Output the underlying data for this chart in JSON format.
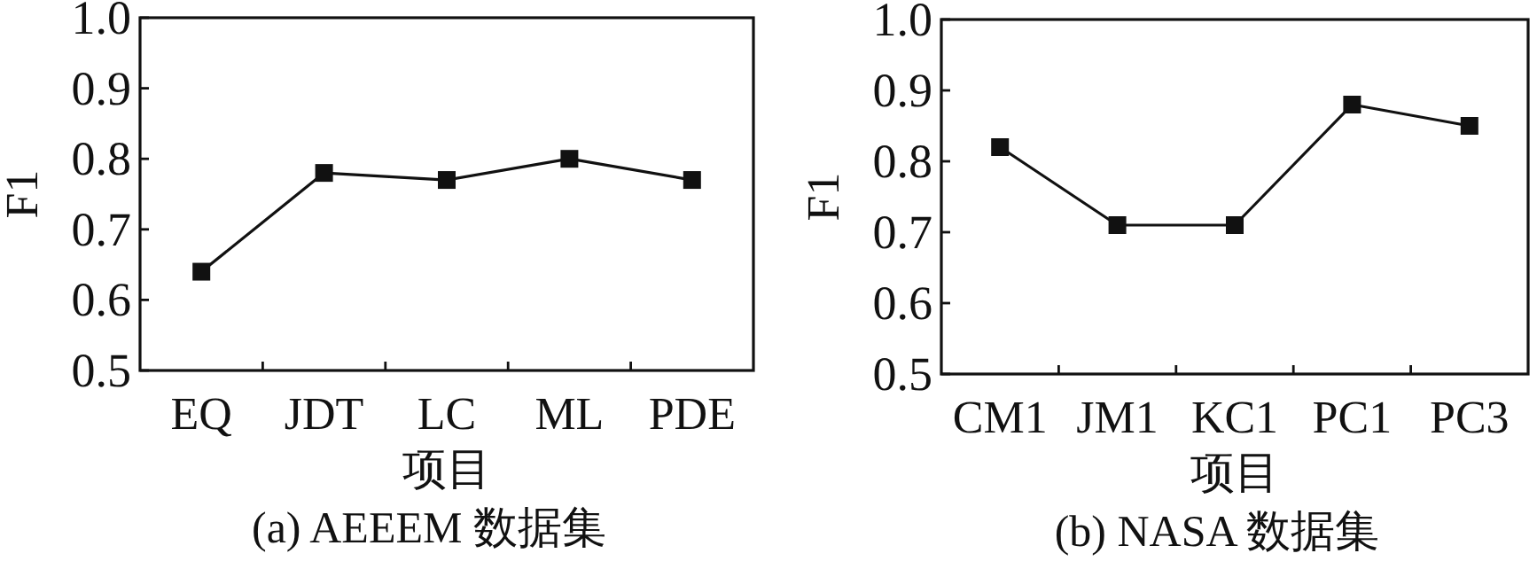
{
  "chart_data": [
    {
      "type": "line",
      "title": "(a) AEEEM 数据集",
      "xlabel": "项目",
      "ylabel": "F1",
      "categories": [
        "EQ",
        "JDT",
        "LC",
        "ML",
        "PDE"
      ],
      "series": [
        {
          "color": "#111111",
          "values": [
            0.64,
            0.78,
            0.77,
            0.8,
            0.77
          ]
        }
      ],
      "ylim": [
        0.5,
        1.0
      ],
      "yticks": [
        {
          "value": 0.5,
          "label": "0.5"
        },
        {
          "value": 0.6,
          "label": "0.6"
        },
        {
          "value": 0.7,
          "label": "0.7"
        },
        {
          "value": 0.8,
          "label": "0.8"
        },
        {
          "value": 0.9,
          "label": "0.9"
        },
        {
          "value": 1.0,
          "label": "1.0"
        }
      ],
      "marker": "square",
      "grid": false
    },
    {
      "type": "line",
      "title": "(b) NASA 数据集",
      "xlabel": "项目",
      "ylabel": "F1",
      "categories": [
        "CM1",
        "JM1",
        "KC1",
        "PC1",
        "PC3"
      ],
      "series": [
        {
          "color": "#111111",
          "values": [
            0.82,
            0.71,
            0.71,
            0.88,
            0.85
          ]
        }
      ],
      "ylim": [
        0.5,
        1.0
      ],
      "yticks": [
        {
          "value": 0.5,
          "label": "0.5"
        },
        {
          "value": 0.6,
          "label": "0.6"
        },
        {
          "value": 0.7,
          "label": "0.7"
        },
        {
          "value": 0.8,
          "label": "0.8"
        },
        {
          "value": 0.9,
          "label": "0.9"
        },
        {
          "value": 1.0,
          "label": "1.0"
        }
      ],
      "marker": "square",
      "grid": false
    }
  ]
}
